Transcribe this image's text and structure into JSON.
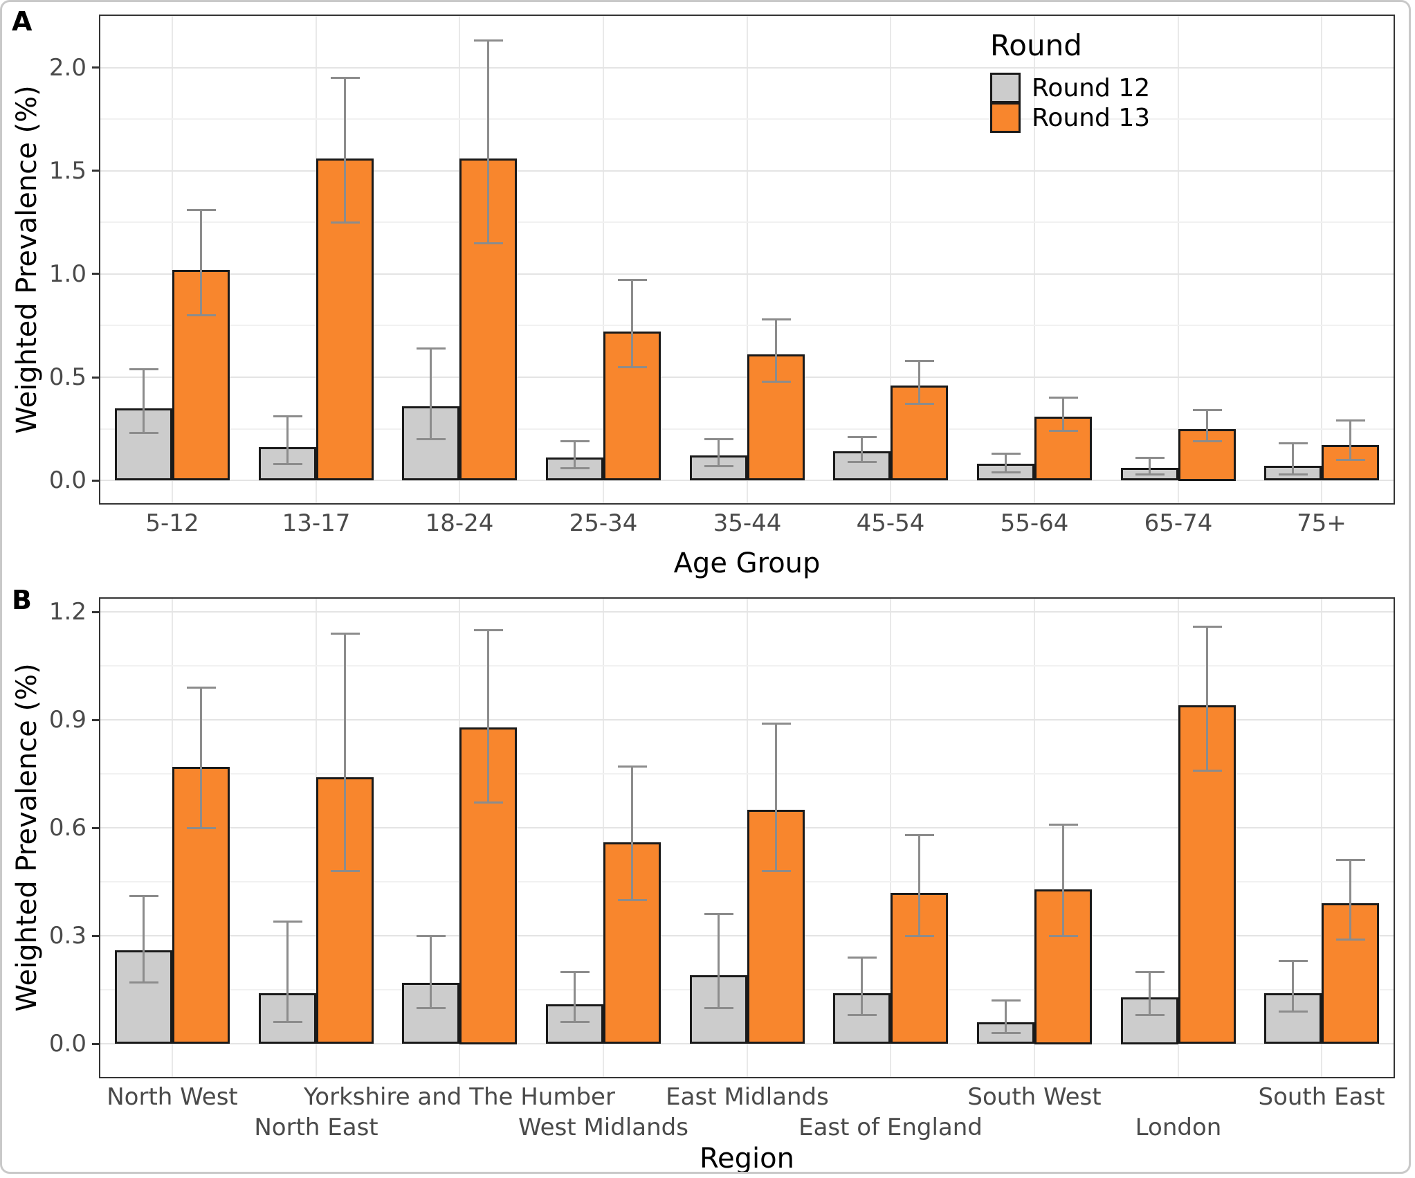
{
  "figure": {
    "panels": [
      {
        "tag": "A"
      },
      {
        "tag": "B"
      }
    ],
    "legend": {
      "title": "Round",
      "items": [
        {
          "label": "Round 12",
          "color": "#CCCCCC"
        },
        {
          "label": "Round 13",
          "color": "#F8862D"
        }
      ]
    }
  },
  "chart_data": [
    {
      "type": "bar",
      "panel_tag": "A",
      "xlabel": "Age Group",
      "ylabel": "Weighted Prevalence (%)",
      "categories": [
        "5-12",
        "13-17",
        "18-24",
        "25-34",
        "35-44",
        "45-54",
        "55-64",
        "65-74",
        "75+"
      ],
      "yticks": [
        0.0,
        0.5,
        1.0,
        1.5,
        2.0
      ],
      "ytick_labels": [
        "0.0",
        "0.5",
        "1.0",
        "1.5",
        "2.0"
      ],
      "ylim": [
        -0.11,
        2.25
      ],
      "grid": true,
      "legend_position": "inside-top-right",
      "series": [
        {
          "name": "Round 12",
          "color": "#CCCCCC",
          "values": [
            0.35,
            0.16,
            0.36,
            0.11,
            0.12,
            0.14,
            0.08,
            0.06,
            0.07
          ],
          "ci_low": [
            0.23,
            0.08,
            0.2,
            0.06,
            0.07,
            0.09,
            0.04,
            0.03,
            0.03
          ],
          "ci_high": [
            0.54,
            0.31,
            0.64,
            0.19,
            0.2,
            0.21,
            0.13,
            0.11,
            0.18
          ]
        },
        {
          "name": "Round 13",
          "color": "#F8862D",
          "values": [
            1.02,
            1.56,
            1.56,
            0.72,
            0.61,
            0.46,
            0.31,
            0.25,
            0.17
          ],
          "ci_low": [
            0.8,
            1.25,
            1.15,
            0.55,
            0.48,
            0.37,
            0.24,
            0.19,
            0.1
          ],
          "ci_high": [
            1.31,
            1.95,
            2.13,
            0.97,
            0.78,
            0.58,
            0.4,
            0.34,
            0.29
          ]
        }
      ]
    },
    {
      "type": "bar",
      "panel_tag": "B",
      "xlabel": "Region",
      "ylabel": "Weighted Prevalence (%)",
      "categories": [
        "North West",
        "North East",
        "Yorkshire and The Humber",
        "West Midlands",
        "East Midlands",
        "East of England",
        "South West",
        "London",
        "South East"
      ],
      "label_row": [
        0,
        1,
        0,
        1,
        0,
        1,
        0,
        1,
        0
      ],
      "yticks": [
        0.0,
        0.3,
        0.6,
        0.9,
        1.2
      ],
      "ytick_labels": [
        "0.0",
        "0.3",
        "0.6",
        "0.9",
        "1.2"
      ],
      "ylim": [
        -0.092,
        1.237
      ],
      "grid": true,
      "legend_position": "none",
      "series": [
        {
          "name": "Round 12",
          "color": "#CCCCCC",
          "values": [
            0.26,
            0.14,
            0.17,
            0.11,
            0.19,
            0.14,
            0.06,
            0.13,
            0.14
          ],
          "ci_low": [
            0.17,
            0.06,
            0.1,
            0.06,
            0.1,
            0.08,
            0.03,
            0.08,
            0.09
          ],
          "ci_high": [
            0.41,
            0.34,
            0.3,
            0.2,
            0.36,
            0.24,
            0.12,
            0.2,
            0.23
          ]
        },
        {
          "name": "Round 13",
          "color": "#F8862D",
          "values": [
            0.77,
            0.74,
            0.88,
            0.56,
            0.65,
            0.42,
            0.43,
            0.94,
            0.39
          ],
          "ci_low": [
            0.6,
            0.48,
            0.67,
            0.4,
            0.48,
            0.3,
            0.3,
            0.76,
            0.29
          ],
          "ci_high": [
            0.99,
            1.14,
            1.15,
            0.77,
            0.89,
            0.58,
            0.61,
            1.16,
            0.51
          ]
        }
      ]
    }
  ]
}
